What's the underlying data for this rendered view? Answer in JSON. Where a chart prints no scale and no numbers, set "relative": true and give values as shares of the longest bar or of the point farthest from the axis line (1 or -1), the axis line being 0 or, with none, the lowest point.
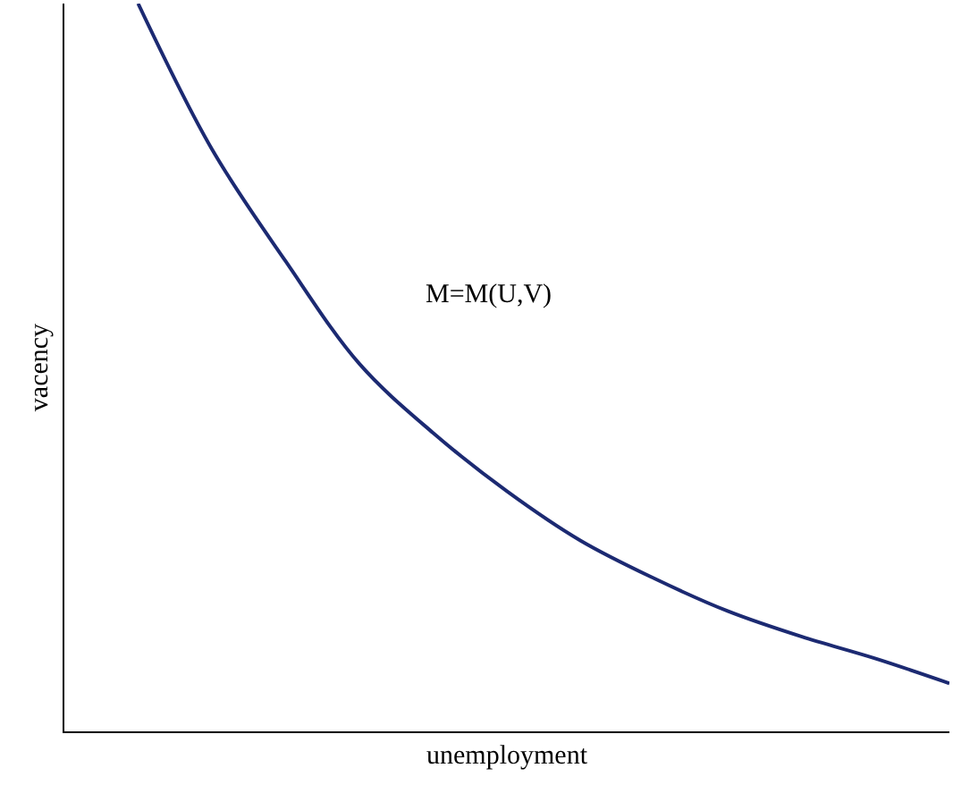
{
  "chart_data": {
    "type": "line",
    "relative": true,
    "xlabel": "unemployment",
    "ylabel": "vacency",
    "annotations": [
      "M=M(U,V)"
    ],
    "categories": [
      null,
      null,
      null,
      null,
      null,
      null,
      null,
      null,
      null,
      null,
      null,
      null,
      null
    ],
    "series": [
      {
        "color": "#1c2a72",
        "values": [
          null,
          1,
          0.8,
          0.646,
          0.505,
          0.41,
          0.33,
          0.262,
          0.21,
          0.165,
          0.13,
          0.1,
          0.066
        ]
      }
    ],
    "marker": "none",
    "line_style": "solid"
  }
}
